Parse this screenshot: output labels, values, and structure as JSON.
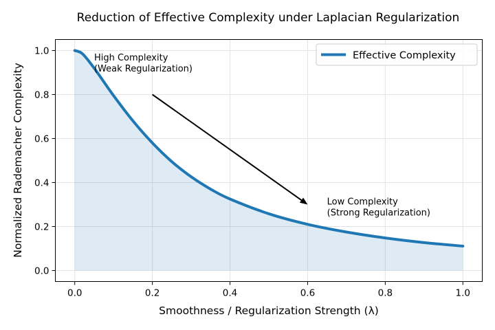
{
  "chart_data": {
    "type": "line",
    "title": "Reduction of Effective Complexity under Laplacian Regularization",
    "xlabel": "Smoothness / Regularization Strength (λ)",
    "ylabel": "Normalized Rademacher Complexity",
    "xlim": [
      -0.05,
      1.05
    ],
    "ylim": [
      -0.05,
      1.05
    ],
    "xticks": [
      0.0,
      0.2,
      0.4,
      0.6,
      0.8,
      1.0
    ],
    "xtick_labels": [
      "0.0",
      "0.2",
      "0.4",
      "0.6",
      "0.8",
      "1.0"
    ],
    "yticks": [
      0.0,
      0.2,
      0.4,
      0.6,
      0.8,
      1.0
    ],
    "ytick_labels": [
      "0.0",
      "0.2",
      "0.4",
      "0.6",
      "0.8",
      "1.0"
    ],
    "grid": true,
    "legend_position": "top-right",
    "series": [
      {
        "name": "Effective Complexity",
        "color": "#1f77b4",
        "fill_color": "#1f77b4",
        "fill_to_zero": true,
        "x": [
          0.0,
          0.02,
          0.05,
          0.1,
          0.15,
          0.2,
          0.25,
          0.3,
          0.35,
          0.4,
          0.5,
          0.6,
          0.7,
          0.8,
          0.9,
          1.0
        ],
        "y": [
          1.0,
          0.985,
          0.92,
          0.795,
          0.68,
          0.58,
          0.495,
          0.426,
          0.37,
          0.325,
          0.258,
          0.21,
          0.175,
          0.148,
          0.127,
          0.111
        ]
      }
    ],
    "annotations": [
      {
        "name": "high-complexity-annotation",
        "lines": [
          "High Complexity",
          "(Weak Regularization)"
        ],
        "x": 0.05,
        "y": 0.955
      },
      {
        "name": "low-complexity-annotation",
        "lines": [
          "Low Complexity",
          "(Strong Regularization)"
        ],
        "x": 0.65,
        "y": 0.3
      }
    ],
    "arrow": {
      "from": [
        0.2,
        0.8
      ],
      "to": [
        0.6,
        0.3
      ]
    }
  }
}
